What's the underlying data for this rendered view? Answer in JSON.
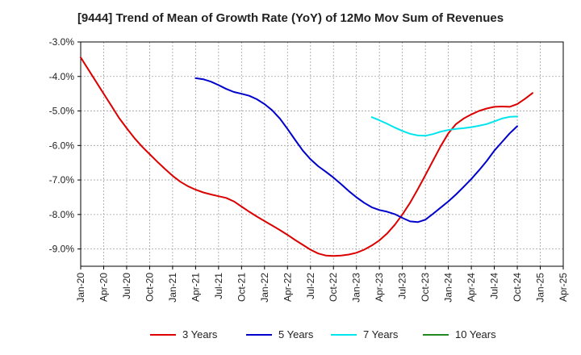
{
  "chart_data": {
    "type": "line",
    "title": "[9444]  Trend of Mean of Growth Rate (YoY) of 12Mo Mov Sum of Revenues",
    "xlabel": "",
    "ylabel": "",
    "ylim": [
      -9.5,
      -3.0
    ],
    "yticks": [
      -3.0,
      -4.0,
      -5.0,
      -6.0,
      -7.0,
      -8.0,
      -9.0
    ],
    "ytick_labels": [
      "-3.0%",
      "-4.0%",
      "-5.0%",
      "-6.0%",
      "-7.0%",
      "-8.0%",
      "-9.0%"
    ],
    "xticks": [
      "Jan-20",
      "Apr-20",
      "Jul-20",
      "Oct-20",
      "Jan-21",
      "Apr-21",
      "Jul-21",
      "Oct-21",
      "Jan-22",
      "Apr-22",
      "Jul-22",
      "Oct-22",
      "Jan-23",
      "Apr-23",
      "Jul-23",
      "Oct-23",
      "Jan-24",
      "Apr-24",
      "Jul-24",
      "Oct-24",
      "Jan-25",
      "Apr-25"
    ],
    "grid": true,
    "legend_position": "bottom",
    "series": [
      {
        "name": "3 Years",
        "color": "#dd0000",
        "start": "Jan-20",
        "values": [
          -3.45,
          -3.8,
          -4.15,
          -4.5,
          -4.85,
          -5.2,
          -5.5,
          -5.78,
          -6.03,
          -6.25,
          -6.47,
          -6.68,
          -6.88,
          -7.05,
          -7.18,
          -7.28,
          -7.36,
          -7.42,
          -7.47,
          -7.52,
          -7.62,
          -7.77,
          -7.92,
          -8.06,
          -8.19,
          -8.32,
          -8.45,
          -8.59,
          -8.74,
          -8.88,
          -9.02,
          -9.13,
          -9.19,
          -9.2,
          -9.19,
          -9.16,
          -9.11,
          -9.02,
          -8.9,
          -8.75,
          -8.55,
          -8.3,
          -8.0,
          -7.66,
          -7.27,
          -6.86,
          -6.44,
          -6.02,
          -5.65,
          -5.38,
          -5.22,
          -5.1,
          -5.0,
          -4.93,
          -4.88,
          -4.87,
          -4.88,
          -4.8,
          -4.65,
          -4.48
        ]
      },
      {
        "name": "5 Years",
        "color": "#0000cc",
        "start": "Apr-21",
        "values": [
          -4.05,
          -4.08,
          -4.15,
          -4.25,
          -4.36,
          -4.45,
          -4.5,
          -4.56,
          -4.66,
          -4.8,
          -4.98,
          -5.22,
          -5.52,
          -5.84,
          -6.15,
          -6.4,
          -6.6,
          -6.76,
          -6.93,
          -7.12,
          -7.32,
          -7.5,
          -7.66,
          -7.79,
          -7.87,
          -7.92,
          -7.99,
          -8.1,
          -8.2,
          -8.22,
          -8.15,
          -7.98,
          -7.8,
          -7.62,
          -7.42,
          -7.2,
          -6.97,
          -6.72,
          -6.45,
          -6.15,
          -5.9,
          -5.65,
          -5.44
        ]
      },
      {
        "name": "7 Years",
        "color": "#00e5ee",
        "start": "Mar-23",
        "values": [
          -5.18,
          -5.27,
          -5.37,
          -5.48,
          -5.58,
          -5.66,
          -5.71,
          -5.72,
          -5.67,
          -5.6,
          -5.55,
          -5.52,
          -5.5,
          -5.47,
          -5.43,
          -5.38,
          -5.3,
          -5.22,
          -5.17,
          -5.16
        ]
      },
      {
        "name": "10 Years",
        "color": "#228822",
        "start": "Jan-20",
        "values": []
      }
    ]
  }
}
